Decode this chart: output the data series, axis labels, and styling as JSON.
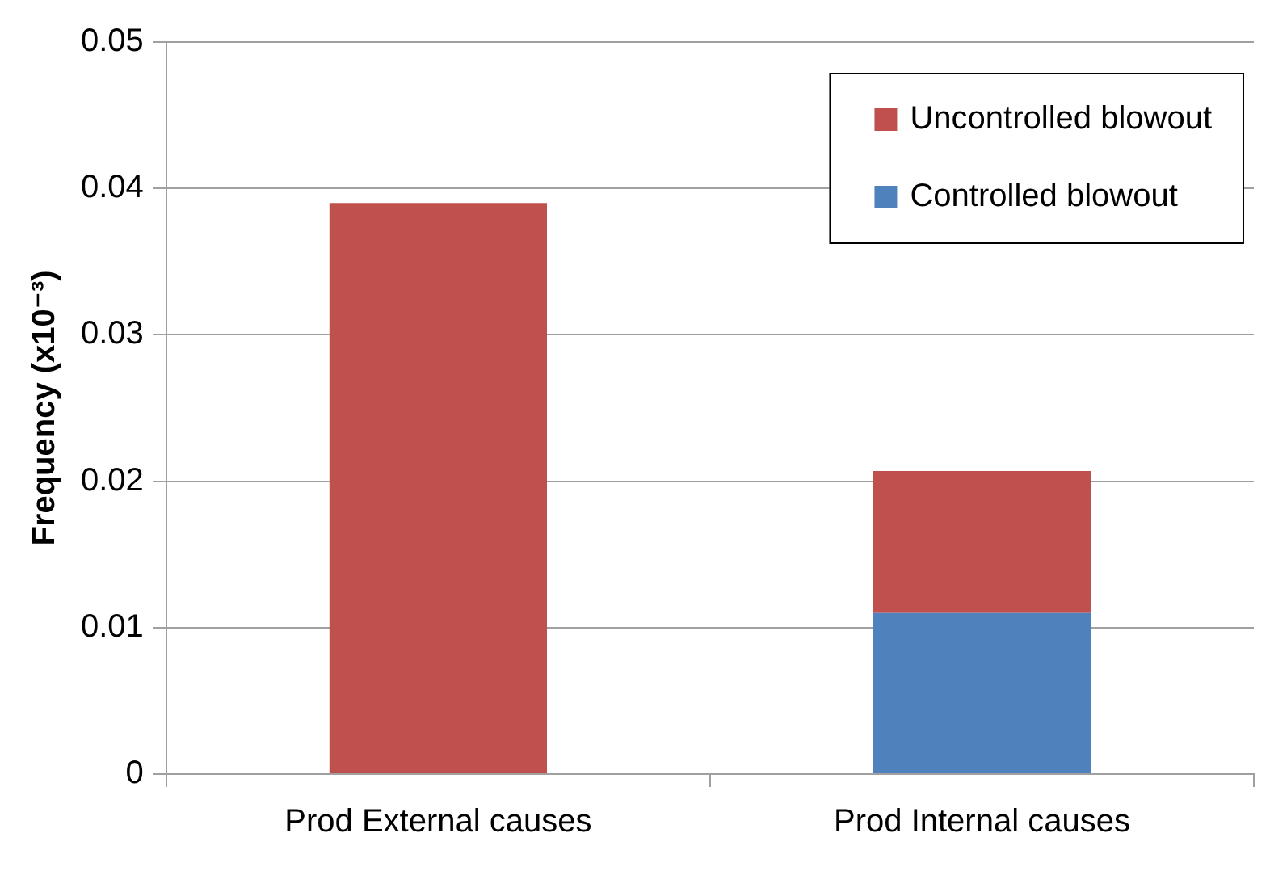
{
  "chart_data": {
    "type": "bar",
    "stacked": true,
    "ylabel": "Frequency (x10⁻³)",
    "categories": [
      "Prod External causes",
      "Prod Internal causes"
    ],
    "series": [
      {
        "name": "Controlled blowout",
        "color": "#4f81bd",
        "values": [
          0,
          0.011
        ]
      },
      {
        "name": "Uncontrolled blowout",
        "color": "#c0504d",
        "values": [
          0.039,
          0.0097
        ]
      }
    ],
    "ylim": [
      0,
      0.05
    ],
    "yticks": [
      0,
      0.01,
      0.02,
      0.03,
      0.04,
      0.05
    ],
    "grid": "y",
    "legend": "top right"
  }
}
